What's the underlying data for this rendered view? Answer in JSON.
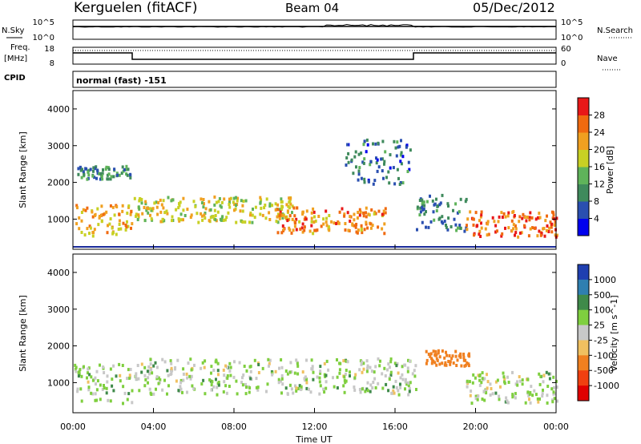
{
  "header": {
    "station": "Kerguelen (fitACF)",
    "beam": "Beam 04",
    "date": "05/Dec/2012"
  },
  "side_labels": {
    "nsky": "N.Sky",
    "freq_line1": "Freq.",
    "freq_line2": "[MHz]",
    "cpid": "CPID",
    "nsearch": "N.Search",
    "nave": "Nave"
  },
  "cpid_text": "normal (fast) -151",
  "noise_panel": {
    "left_ticks": [
      "10^5",
      "10^0"
    ],
    "right_ticks": [
      "10^5",
      "10^0"
    ]
  },
  "freq_panel": {
    "left_ticks": [
      "18",
      "8"
    ],
    "right_ticks": [
      "60",
      "0"
    ]
  },
  "colors": {
    "power_scale": [
      "#0000ee",
      "#2a4fb0",
      "#3f8a5c",
      "#5fb35a",
      "#c8d024",
      "#f0a020",
      "#f06a10",
      "#e81818"
    ],
    "velocity_scale": [
      "#1f3fb0",
      "#2f7fb0",
      "#3f8a4a",
      "#7fcf3f",
      "#c8c8c8",
      "#f0c060",
      "#f08020",
      "#f04010",
      "#e00000"
    ]
  },
  "chart_data": [
    {
      "type": "heatmap",
      "title": "Power",
      "ylabel": "Slant Range [km]",
      "xlabel": "Time UT",
      "x_ticks": [
        "00:00",
        "04:00",
        "08:00",
        "12:00",
        "16:00",
        "20:00",
        "00:00"
      ],
      "y_ticks": [
        "1000",
        "2000",
        "3000",
        "4000"
      ],
      "ylim": [
        180,
        4500
      ],
      "colorbar_label": "Power [dB]",
      "colorbar_ticks": [
        "4",
        "8",
        "12",
        "16",
        "20",
        "24",
        "28"
      ],
      "features": [
        {
          "t_start": 0.0,
          "t_end": 2.9,
          "r_center": 1000,
          "r_width": 600,
          "power": 22
        },
        {
          "t_start": 0.2,
          "t_end": 2.9,
          "r_center": 2300,
          "r_width": 250,
          "power": 10
        },
        {
          "t_start": 3.0,
          "t_end": 11.0,
          "r_center": 1300,
          "r_width": 500,
          "power": 18
        },
        {
          "t_start": 10.0,
          "t_end": 15.5,
          "r_center": 1000,
          "r_width": 500,
          "power": 24
        },
        {
          "t_start": 13.5,
          "t_end": 16.8,
          "r_center": 2600,
          "r_width": 900,
          "power": 8
        },
        {
          "t_start": 17.0,
          "t_end": 19.5,
          "r_center": 1200,
          "r_width": 700,
          "power": 9
        },
        {
          "t_start": 19.5,
          "t_end": 24.0,
          "r_center": 900,
          "r_width": 500,
          "power": 26
        }
      ]
    },
    {
      "type": "heatmap",
      "title": "Velocity",
      "ylabel": "Slant Range [km]",
      "xlabel": "Time UT",
      "x_ticks": [
        "00:00",
        "04:00",
        "08:00",
        "12:00",
        "16:00",
        "20:00",
        "00:00"
      ],
      "y_ticks": [
        "1000",
        "2000",
        "3000",
        "4000"
      ],
      "ylim": [
        180,
        4500
      ],
      "colorbar_label": "Velocity [m s^-1]",
      "colorbar_ticks": [
        "1000",
        "500",
        "100",
        "25",
        "-25",
        "-100",
        "-500",
        "-1000"
      ],
      "features": [
        {
          "t_start": 0.0,
          "t_end": 2.9,
          "r_center": 1000,
          "r_width": 800,
          "velocity": 0
        },
        {
          "t_start": 3.0,
          "t_end": 17.0,
          "r_center": 1200,
          "r_width": 700,
          "velocity": 0
        },
        {
          "t_start": 17.5,
          "t_end": 19.8,
          "r_center": 1700,
          "r_width": 300,
          "velocity": -200
        },
        {
          "t_start": 19.5,
          "t_end": 24.0,
          "r_center": 900,
          "r_width": 600,
          "velocity": 0
        }
      ]
    }
  ],
  "time_axis_label": "Time UT"
}
